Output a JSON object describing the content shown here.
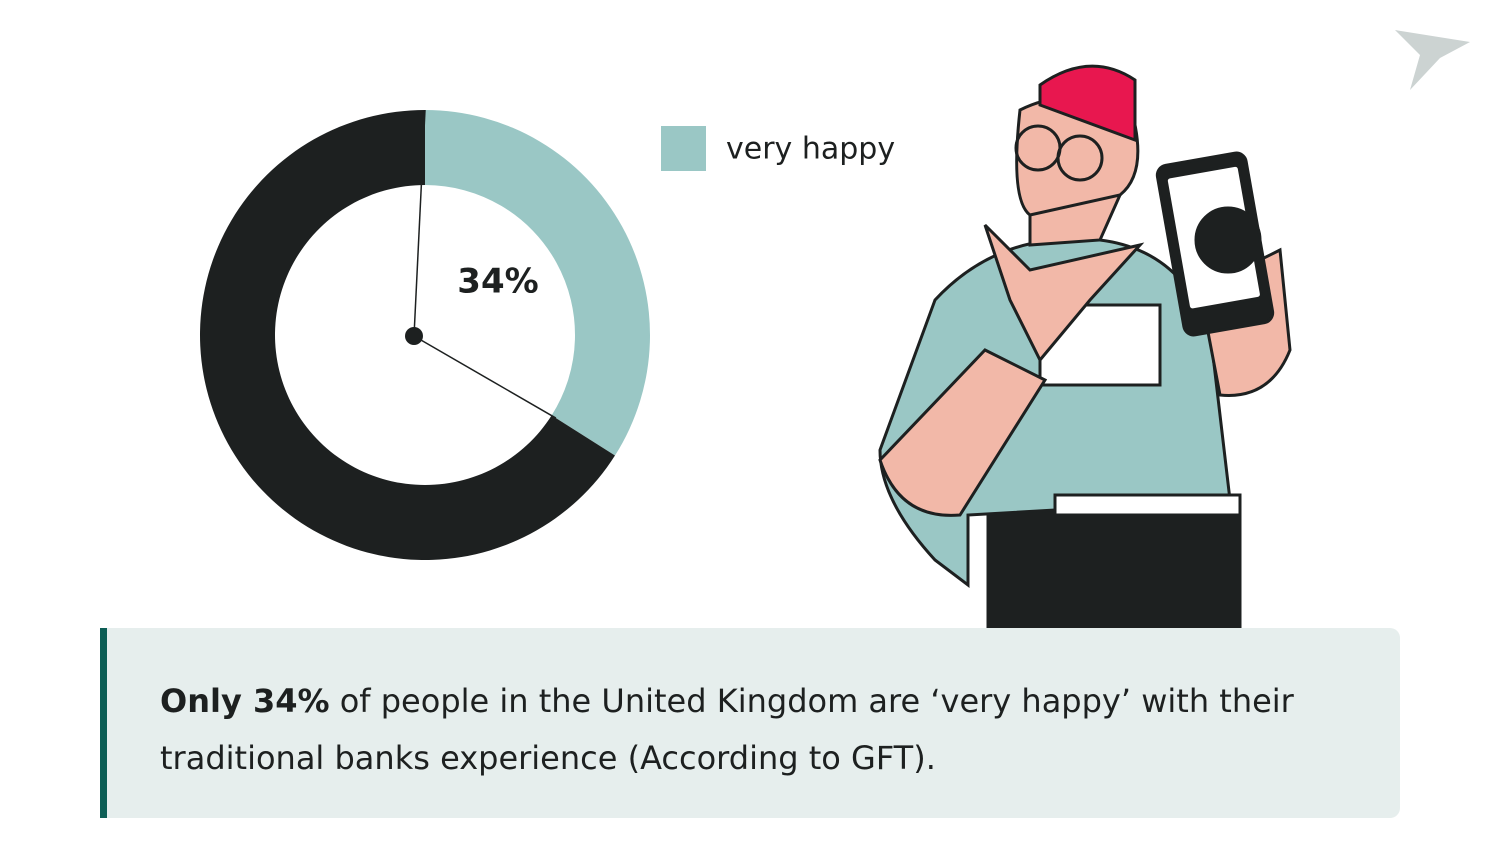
{
  "chart_data": {
    "type": "donut",
    "categories": [
      "very happy",
      null
    ],
    "values": [
      34,
      66
    ],
    "value_labels": [
      "34%",
      null
    ],
    "colors": [
      "#9ac7c5",
      "#1d2020"
    ]
  },
  "caption": {
    "emphasis": "Only 34%",
    "text": "of people in the United Kingdom are ‘very happy’ with their traditional banks experience (According to GFT)."
  }
}
